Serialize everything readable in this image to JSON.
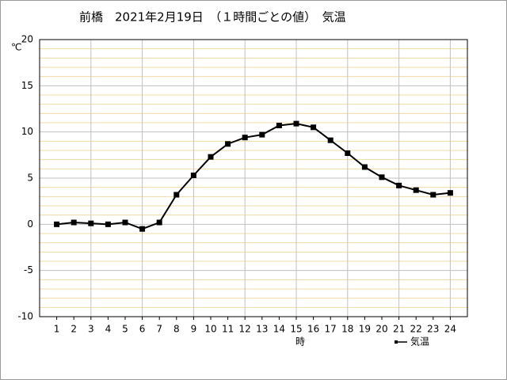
{
  "chart_data": {
    "type": "line",
    "title": "前橋　2021年2月19日　（１時間ごとの値）　気温",
    "y_unit": "℃",
    "x_label": "時",
    "x": [
      1,
      2,
      3,
      4,
      5,
      6,
      7,
      8,
      9,
      10,
      11,
      12,
      13,
      14,
      15,
      16,
      17,
      18,
      19,
      20,
      21,
      22,
      23,
      24
    ],
    "series": [
      {
        "name": "気温",
        "color": "#000000",
        "values": [
          0.0,
          0.2,
          0.1,
          0.0,
          0.2,
          -0.5,
          0.2,
          3.2,
          5.3,
          7.3,
          8.7,
          9.4,
          9.7,
          10.7,
          10.9,
          10.5,
          9.1,
          7.7,
          6.2,
          5.1,
          4.2,
          3.7,
          3.2,
          3.4
        ]
      }
    ],
    "xlim": [
      0,
      25
    ],
    "xticks": [
      1,
      2,
      3,
      4,
      5,
      6,
      7,
      8,
      9,
      10,
      11,
      12,
      13,
      14,
      15,
      16,
      17,
      18,
      19,
      20,
      21,
      22,
      23,
      24
    ],
    "xgrid": [
      3,
      6,
      9,
      12,
      15,
      18,
      21,
      24
    ],
    "ylim": [
      -10,
      20
    ],
    "yticks": [
      -10,
      -5,
      0,
      5,
      10,
      15,
      20
    ],
    "minor_yticks": [
      -9,
      -8,
      -7,
      -6,
      -4,
      -3,
      -2,
      -1,
      1,
      2,
      3,
      4,
      6,
      7,
      8,
      9,
      11,
      12,
      13,
      14,
      16,
      17,
      18,
      19
    ],
    "grid": true
  }
}
